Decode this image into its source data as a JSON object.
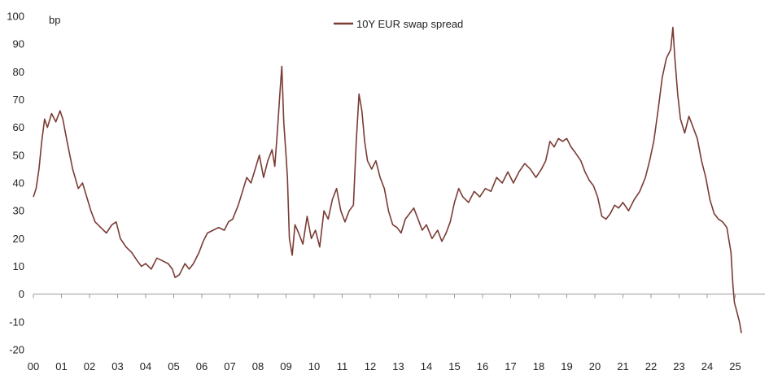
{
  "chart_data": {
    "type": "line",
    "title": "",
    "xlabel": "",
    "ylabel": "bp",
    "ylim": [
      -20,
      100
    ],
    "xlim": [
      2000,
      2026
    ],
    "grid": false,
    "legend_position": "top-center",
    "y_ticks": [
      -20,
      -10,
      0,
      10,
      20,
      30,
      40,
      50,
      60,
      70,
      80,
      90,
      100
    ],
    "x_ticks": [
      {
        "label": "00",
        "value": 2000
      },
      {
        "label": "01",
        "value": 2001
      },
      {
        "label": "02",
        "value": 2002
      },
      {
        "label": "03",
        "value": 2003
      },
      {
        "label": "04",
        "value": 2004
      },
      {
        "label": "05",
        "value": 2005
      },
      {
        "label": "06",
        "value": 2006
      },
      {
        "label": "07",
        "value": 2007
      },
      {
        "label": "08",
        "value": 2008
      },
      {
        "label": "09",
        "value": 2009
      },
      {
        "label": "10",
        "value": 2010
      },
      {
        "label": "11",
        "value": 2011
      },
      {
        "label": "12",
        "value": 2012
      },
      {
        "label": "13",
        "value": 2013
      },
      {
        "label": "14",
        "value": 2014
      },
      {
        "label": "15",
        "value": 2015
      },
      {
        "label": "16",
        "value": 2016
      },
      {
        "label": "17",
        "value": 2017
      },
      {
        "label": "18",
        "value": 2018
      },
      {
        "label": "19",
        "value": 2019
      },
      {
        "label": "20",
        "value": 2020
      },
      {
        "label": "21",
        "value": 2021
      },
      {
        "label": "22",
        "value": 2022
      },
      {
        "label": "23",
        "value": 2023
      },
      {
        "label": "24",
        "value": 2024
      },
      {
        "label": "25",
        "value": 2025
      }
    ],
    "series": [
      {
        "name": "10Y EUR swap spread",
        "color": "#7a3b33",
        "points": [
          [
            2000.0,
            35
          ],
          [
            2000.1,
            38
          ],
          [
            2000.2,
            45
          ],
          [
            2000.3,
            55
          ],
          [
            2000.4,
            63
          ],
          [
            2000.5,
            60
          ],
          [
            2000.65,
            65
          ],
          [
            2000.8,
            62
          ],
          [
            2000.95,
            66
          ],
          [
            2001.05,
            63
          ],
          [
            2001.2,
            55
          ],
          [
            2001.4,
            45
          ],
          [
            2001.6,
            38
          ],
          [
            2001.75,
            40
          ],
          [
            2001.9,
            35
          ],
          [
            2002.05,
            30
          ],
          [
            2002.2,
            26
          ],
          [
            2002.4,
            24
          ],
          [
            2002.6,
            22
          ],
          [
            2002.8,
            25
          ],
          [
            2002.95,
            26
          ],
          [
            2003.1,
            20
          ],
          [
            2003.3,
            17
          ],
          [
            2003.5,
            15
          ],
          [
            2003.7,
            12
          ],
          [
            2003.85,
            10
          ],
          [
            2004.0,
            11
          ],
          [
            2004.2,
            9
          ],
          [
            2004.4,
            13
          ],
          [
            2004.6,
            12
          ],
          [
            2004.8,
            11
          ],
          [
            2004.95,
            9
          ],
          [
            2005.05,
            6
          ],
          [
            2005.2,
            7
          ],
          [
            2005.4,
            11
          ],
          [
            2005.55,
            9
          ],
          [
            2005.7,
            11
          ],
          [
            2005.9,
            15
          ],
          [
            2006.05,
            19
          ],
          [
            2006.2,
            22
          ],
          [
            2006.4,
            23
          ],
          [
            2006.6,
            24
          ],
          [
            2006.8,
            23
          ],
          [
            2006.95,
            26
          ],
          [
            2007.1,
            27
          ],
          [
            2007.3,
            32
          ],
          [
            2007.45,
            37
          ],
          [
            2007.6,
            42
          ],
          [
            2007.75,
            40
          ],
          [
            2007.9,
            45
          ],
          [
            2008.05,
            50
          ],
          [
            2008.2,
            42
          ],
          [
            2008.35,
            48
          ],
          [
            2008.5,
            52
          ],
          [
            2008.6,
            46
          ],
          [
            2008.7,
            60
          ],
          [
            2008.78,
            72
          ],
          [
            2008.85,
            82
          ],
          [
            2008.92,
            62
          ],
          [
            2009.0,
            50
          ],
          [
            2009.05,
            42
          ],
          [
            2009.12,
            20
          ],
          [
            2009.22,
            14
          ],
          [
            2009.32,
            25
          ],
          [
            2009.45,
            22
          ],
          [
            2009.6,
            18
          ],
          [
            2009.75,
            28
          ],
          [
            2009.9,
            20
          ],
          [
            2010.05,
            23
          ],
          [
            2010.2,
            17
          ],
          [
            2010.35,
            30
          ],
          [
            2010.5,
            27
          ],
          [
            2010.65,
            34
          ],
          [
            2010.8,
            38
          ],
          [
            2010.95,
            30
          ],
          [
            2011.1,
            26
          ],
          [
            2011.25,
            30
          ],
          [
            2011.4,
            32
          ],
          [
            2011.5,
            55
          ],
          [
            2011.6,
            72
          ],
          [
            2011.7,
            66
          ],
          [
            2011.8,
            55
          ],
          [
            2011.9,
            48
          ],
          [
            2012.05,
            45
          ],
          [
            2012.2,
            48
          ],
          [
            2012.35,
            42
          ],
          [
            2012.5,
            38
          ],
          [
            2012.65,
            30
          ],
          [
            2012.8,
            25
          ],
          [
            2012.95,
            24
          ],
          [
            2013.1,
            22
          ],
          [
            2013.25,
            27
          ],
          [
            2013.4,
            29
          ],
          [
            2013.55,
            31
          ],
          [
            2013.7,
            27
          ],
          [
            2013.85,
            23
          ],
          [
            2014.0,
            25
          ],
          [
            2014.2,
            20
          ],
          [
            2014.4,
            23
          ],
          [
            2014.55,
            19
          ],
          [
            2014.7,
            22
          ],
          [
            2014.85,
            26
          ],
          [
            2015.0,
            33
          ],
          [
            2015.15,
            38
          ],
          [
            2015.3,
            35
          ],
          [
            2015.5,
            33
          ],
          [
            2015.7,
            37
          ],
          [
            2015.9,
            35
          ],
          [
            2016.1,
            38
          ],
          [
            2016.3,
            37
          ],
          [
            2016.5,
            42
          ],
          [
            2016.7,
            40
          ],
          [
            2016.9,
            44
          ],
          [
            2017.1,
            40
          ],
          [
            2017.3,
            44
          ],
          [
            2017.5,
            47
          ],
          [
            2017.7,
            45
          ],
          [
            2017.9,
            42
          ],
          [
            2018.1,
            45
          ],
          [
            2018.25,
            48
          ],
          [
            2018.4,
            55
          ],
          [
            2018.55,
            53
          ],
          [
            2018.7,
            56
          ],
          [
            2018.85,
            55
          ],
          [
            2019.0,
            56
          ],
          [
            2019.15,
            53
          ],
          [
            2019.3,
            51
          ],
          [
            2019.5,
            48
          ],
          [
            2019.65,
            44
          ],
          [
            2019.8,
            41
          ],
          [
            2019.95,
            39
          ],
          [
            2020.1,
            35
          ],
          [
            2020.25,
            28
          ],
          [
            2020.4,
            27
          ],
          [
            2020.55,
            29
          ],
          [
            2020.7,
            32
          ],
          [
            2020.85,
            31
          ],
          [
            2021.0,
            33
          ],
          [
            2021.2,
            30
          ],
          [
            2021.4,
            34
          ],
          [
            2021.6,
            37
          ],
          [
            2021.8,
            42
          ],
          [
            2021.95,
            48
          ],
          [
            2022.1,
            55
          ],
          [
            2022.25,
            66
          ],
          [
            2022.4,
            78
          ],
          [
            2022.55,
            85
          ],
          [
            2022.7,
            88
          ],
          [
            2022.78,
            96
          ],
          [
            2022.85,
            85
          ],
          [
            2022.95,
            72
          ],
          [
            2023.05,
            63
          ],
          [
            2023.2,
            58
          ],
          [
            2023.35,
            64
          ],
          [
            2023.5,
            60
          ],
          [
            2023.65,
            56
          ],
          [
            2023.8,
            48
          ],
          [
            2023.95,
            42
          ],
          [
            2024.1,
            34
          ],
          [
            2024.25,
            29
          ],
          [
            2024.4,
            27
          ],
          [
            2024.55,
            26
          ],
          [
            2024.7,
            24
          ],
          [
            2024.85,
            15
          ],
          [
            2024.92,
            3
          ],
          [
            2024.97,
            -3
          ],
          [
            2025.05,
            -6
          ],
          [
            2025.15,
            -10
          ],
          [
            2025.22,
            -14
          ]
        ]
      }
    ]
  }
}
